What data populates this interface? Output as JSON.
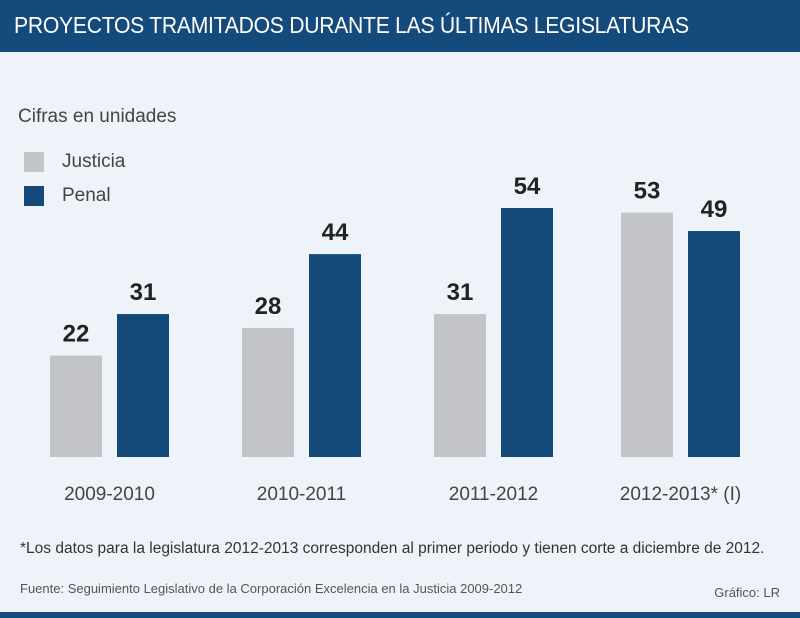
{
  "header": {
    "title": "PROYECTOS TRAMITADOS DURANTE LAS ÚLTIMAS LEGISLATURAS"
  },
  "unit_label": "Cifras en unidades",
  "legend": [
    {
      "label": "Justicia",
      "color": "#c3c4c7"
    },
    {
      "label": "Penal",
      "color": "#134879"
    }
  ],
  "note": "*Los datos para la legislatura 2012-2013 corresponden al primer periodo y tienen corte a diciembre de 2012.",
  "source": "Fuente: Seguimiento Legislativo de la Corporación Excelencia en la Justicia 2009-2012",
  "credit": "Gráfico: LR",
  "chart_data": {
    "type": "bar",
    "title": "PROYECTOS TRAMITADOS DURANTE LAS ÚLTIMAS LEGISLATURAS",
    "subtitle": "Cifras en unidades",
    "xlabel": "",
    "ylabel": "",
    "categories": [
      "2009-2010",
      "2010-2011",
      "2011-2012",
      "2012-2013* (I)"
    ],
    "series": [
      {
        "name": "Justicia",
        "color": "#c3c4c7",
        "values": [
          22,
          28,
          31,
          53
        ]
      },
      {
        "name": "Penal",
        "color": "#134879",
        "values": [
          31,
          44,
          54,
          49
        ]
      }
    ],
    "ylim": [
      0,
      54
    ],
    "grid": false,
    "legend_position": "top-left",
    "data_labels": true
  }
}
